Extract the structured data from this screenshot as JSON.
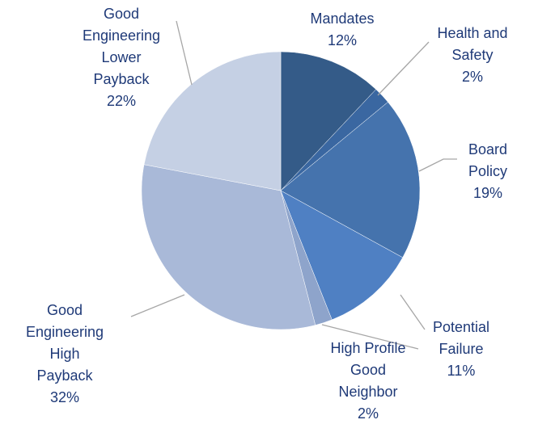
{
  "chart_data": {
    "type": "pie",
    "categories": [
      "Mandates",
      "Health and Safety",
      "Board Policy",
      "Potential Failure",
      "High Profile Good Neighbor",
      "Good Engineering High Payback",
      "Good Engineering Lower Payback"
    ],
    "values": [
      12,
      2,
      19,
      11,
      2,
      32,
      22
    ],
    "value_labels": [
      "12%",
      "2%",
      "19%",
      "11%",
      "2%",
      "32%",
      "22%"
    ],
    "colors": [
      "#345b88",
      "#3a67a1",
      "#4573ad",
      "#4f80c3",
      "#8ea4cb",
      "#a9b9d8",
      "#c5d0e4"
    ]
  }
}
